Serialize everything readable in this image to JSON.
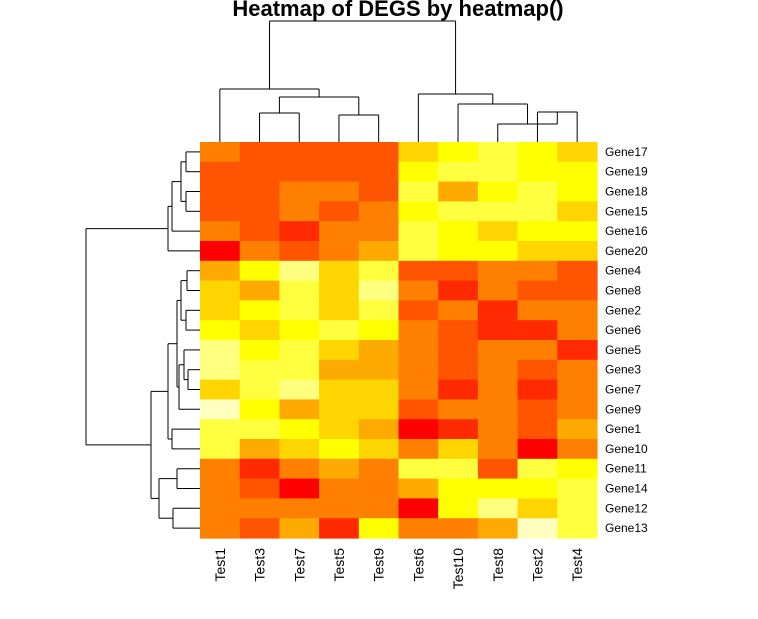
{
  "chart_data": {
    "type": "heatmap",
    "title": "Heatmap of DEGS by heatmap()",
    "columns": [
      "Test1",
      "Test3",
      "Test7",
      "Test5",
      "Test9",
      "Test6",
      "Test10",
      "Test8",
      "Test2",
      "Test4"
    ],
    "rows": [
      "Gene17",
      "Gene19",
      "Gene18",
      "Gene15",
      "Gene16",
      "Gene20",
      "Gene4",
      "Gene8",
      "Gene2",
      "Gene6",
      "Gene5",
      "Gene3",
      "Gene7",
      "Gene9",
      "Gene1",
      "Gene10",
      "Gene11",
      "Gene14",
      "Gene12",
      "Gene13"
    ],
    "color_scale": [
      "#FF0000",
      "#FF2A00",
      "#FF5500",
      "#FF8000",
      "#FFAA00",
      "#FFD500",
      "#FFFF00",
      "#FFFF40",
      "#FFFF80",
      "#FFFFBF"
    ],
    "values": [
      [
        3,
        2,
        2,
        2,
        2,
        5,
        6,
        7,
        6,
        5
      ],
      [
        2,
        2,
        2,
        2,
        2,
        6,
        7,
        7,
        6,
        6
      ],
      [
        2,
        2,
        3,
        3,
        2,
        7,
        4,
        6,
        7,
        6
      ],
      [
        2,
        2,
        3,
        2,
        3,
        6,
        7,
        7,
        7,
        5
      ],
      [
        3,
        2,
        1,
        3,
        3,
        7,
        6,
        5,
        6,
        6
      ],
      [
        0,
        3,
        2,
        3,
        4,
        7,
        6,
        6,
        5,
        5
      ],
      [
        4,
        6,
        8,
        5,
        7,
        2,
        2,
        3,
        3,
        2
      ],
      [
        5,
        4,
        7,
        5,
        8,
        3,
        1,
        3,
        2,
        2
      ],
      [
        5,
        6,
        7,
        5,
        7,
        2,
        3,
        1,
        3,
        3
      ],
      [
        6,
        5,
        6,
        7,
        6,
        3,
        2,
        1,
        1,
        3
      ],
      [
        8,
        6,
        7,
        5,
        4,
        3,
        2,
        3,
        3,
        1
      ],
      [
        8,
        7,
        7,
        4,
        4,
        3,
        2,
        3,
        2,
        3
      ],
      [
        5,
        7,
        8,
        5,
        5,
        3,
        1,
        3,
        1,
        3
      ],
      [
        9,
        6,
        4,
        5,
        5,
        2,
        3,
        3,
        2,
        3
      ],
      [
        7,
        7,
        6,
        5,
        4,
        0,
        1,
        3,
        2,
        4
      ],
      [
        7,
        4,
        5,
        6,
        5,
        3,
        5,
        3,
        0,
        3
      ],
      [
        3,
        1,
        3,
        4,
        3,
        7,
        7,
        2,
        7,
        6
      ],
      [
        3,
        2,
        0,
        3,
        3,
        4,
        6,
        6,
        6,
        7
      ],
      [
        3,
        3,
        3,
        3,
        3,
        0,
        6,
        8,
        5,
        7
      ],
      [
        3,
        2,
        4,
        1,
        6,
        3,
        3,
        4,
        9,
        7
      ]
    ],
    "row_dendrogram": true,
    "column_dendrogram": true
  }
}
